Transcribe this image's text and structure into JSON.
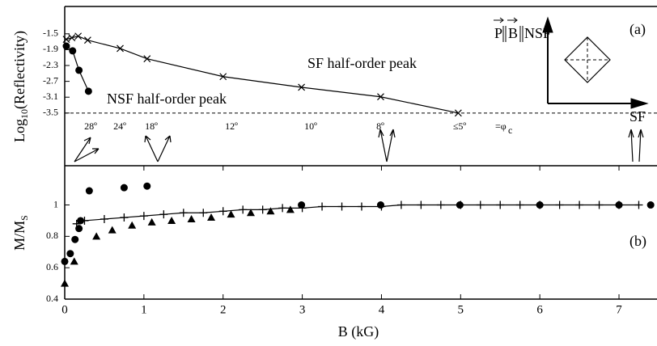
{
  "chart_data": [
    {
      "type": "scatter",
      "panel_label": "(a)",
      "y_label": [
        "Log",
        "10",
        "(Reflectivity)"
      ],
      "xlim": [
        0,
        7.48
      ],
      "ylim": [
        -4.83,
        -0.81
      ],
      "yticks": [
        -1.5,
        -1.9,
        -2.3,
        -2.7,
        -3.1,
        -3.5
      ],
      "reference_line": -3.5,
      "annotations": [
        "SF half-order peak",
        "NSF half-order peak"
      ],
      "angle_labels": [
        "28º",
        "24º",
        "18º",
        "12º",
        "10º",
        "8º",
        "≤5º",
        "=φ",
        "c"
      ],
      "inset_axes": {
        "vertical": [
          "P",
          "B",
          "NSF"
        ],
        "horizontal": "SF"
      },
      "series": [
        {
          "name": "SF",
          "marker": "x",
          "connected": true,
          "x": [
            0.02,
            0.09,
            0.17,
            0.29,
            0.7,
            1.04,
            2.0,
            2.99,
            3.99,
            4.97
          ],
          "values": [
            -1.64,
            -1.6,
            -1.56,
            -1.66,
            -1.87,
            -2.13,
            -2.58,
            -2.85,
            -3.09,
            -3.5
          ]
        },
        {
          "name": "NSF",
          "marker": "circle",
          "connected": true,
          "x": [
            0.02,
            0.1,
            0.18,
            0.3
          ],
          "values": [
            -1.81,
            -1.93,
            -2.42,
            -2.95
          ]
        }
      ]
    },
    {
      "type": "scatter",
      "panel_label": "(b)",
      "y_label": [
        "M/M",
        "S"
      ],
      "x_label": "B (kG)",
      "xlim": [
        0,
        7.48
      ],
      "ylim": [
        0.4,
        1.25
      ],
      "xticks": [
        0,
        1,
        2,
        3,
        4,
        5,
        6,
        7
      ],
      "yticks": [
        0.4,
        0.6,
        0.8,
        1
      ],
      "series": [
        {
          "name": "circles",
          "marker": "circle",
          "connected": false,
          "x": [
            0,
            0.07,
            0.13,
            0.18,
            0.2,
            0.31,
            0.75,
            1.04,
            2.99,
            3.99,
            4.99,
            6.0,
            7.0,
            7.4
          ],
          "values": [
            0.64,
            0.69,
            0.78,
            0.85,
            0.9,
            1.09,
            1.11,
            1.12,
            1.0,
            1.0,
            1.0,
            1.0,
            1.0,
            1.0
          ]
        },
        {
          "name": "plus",
          "marker": "plus",
          "connected": true,
          "x": [
            0.15,
            0.25,
            0.5,
            0.75,
            1.0,
            1.25,
            1.5,
            1.75,
            2.0,
            2.25,
            2.5,
            2.75,
            3.0,
            3.25,
            3.5,
            3.75,
            4.0,
            4.25,
            4.5,
            4.75,
            5.0,
            5.25,
            5.5,
            5.75,
            6.0,
            6.25,
            6.5,
            6.75,
            7.0,
            7.25
          ],
          "values": [
            0.88,
            0.9,
            0.91,
            0.92,
            0.93,
            0.94,
            0.95,
            0.95,
            0.96,
            0.97,
            0.97,
            0.98,
            0.98,
            0.99,
            0.99,
            0.99,
            0.99,
            1.0,
            1.0,
            1.0,
            1.0,
            1.0,
            1.0,
            1.0,
            1.0,
            1.0,
            1.0,
            1.0,
            1.0,
            1.0
          ]
        },
        {
          "name": "triangles",
          "marker": "triangle",
          "connected": false,
          "x": [
            0,
            0.12,
            0.4,
            0.6,
            0.85,
            1.1,
            1.35,
            1.6,
            1.85,
            2.1,
            2.35,
            2.6,
            2.85
          ],
          "values": [
            0.5,
            0.64,
            0.8,
            0.84,
            0.87,
            0.89,
            0.9,
            0.91,
            0.92,
            0.94,
            0.95,
            0.96,
            0.97
          ]
        }
      ]
    }
  ]
}
